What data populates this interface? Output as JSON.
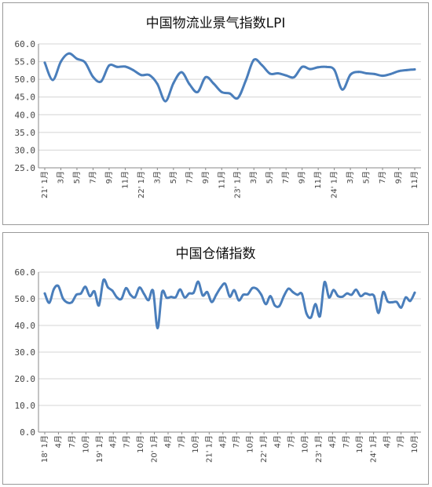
{
  "chart_data": [
    {
      "type": "line",
      "title": "中国物流业景气指数LPI",
      "ylim": [
        25.0,
        60.0
      ],
      "yticks": [
        "60.0",
        "55.0",
        "50.0",
        "45.0",
        "40.0",
        "35.0",
        "30.0",
        "25.0"
      ],
      "grid": true,
      "legend": "none",
      "x_labels": [
        "21' 1月",
        "3月",
        "5月",
        "7月",
        "9月",
        "11月",
        "22' 1月",
        "3月",
        "5月",
        "7月",
        "9月",
        "11月",
        "23' 1月",
        "3月",
        "5月",
        "7月",
        "9月",
        "11月",
        "24' 1月",
        "3月",
        "5月",
        "7月",
        "9月",
        "11月"
      ],
      "x": [
        "2021-01",
        "2021-02",
        "2021-03",
        "2021-04",
        "2021-05",
        "2021-06",
        "2021-07",
        "2021-08",
        "2021-09",
        "2021-10",
        "2021-11",
        "2021-12",
        "2022-01",
        "2022-02",
        "2022-03",
        "2022-04",
        "2022-05",
        "2022-06",
        "2022-07",
        "2022-08",
        "2022-09",
        "2022-10",
        "2022-11",
        "2022-12",
        "2023-01",
        "2023-02",
        "2023-03",
        "2023-04",
        "2023-05",
        "2023-06",
        "2023-07",
        "2023-08",
        "2023-09",
        "2023-10",
        "2023-11",
        "2023-12",
        "2024-01",
        "2024-02",
        "2024-03",
        "2024-04",
        "2024-05",
        "2024-06",
        "2024-07",
        "2024-08",
        "2024-09",
        "2024-10",
        "2024-11"
      ],
      "series": [
        {
          "values": [
            54.7,
            49.8,
            55.0,
            57.3,
            55.8,
            54.8,
            50.7,
            49.4,
            53.9,
            53.5,
            53.6,
            52.6,
            51.2,
            51.2,
            48.7,
            43.8,
            48.9,
            52.0,
            48.6,
            46.4,
            50.6,
            48.8,
            46.4,
            46.0,
            44.7,
            49.7,
            55.5,
            54.0,
            51.6,
            51.7,
            51.1,
            50.6,
            53.5,
            52.9,
            53.4,
            53.5,
            52.7,
            47.1,
            51.3,
            52.1,
            51.7,
            51.5,
            51.0,
            51.5,
            52.3,
            52.6,
            52.8
          ]
        }
      ]
    },
    {
      "type": "line",
      "title": "中国仓储指数",
      "ylim": [
        0.0,
        60.0
      ],
      "yticks": [
        "60.0",
        "50.0",
        "40.0",
        "30.0",
        "20.0",
        "10.0",
        "0.0"
      ],
      "grid": true,
      "legend": "none",
      "x_labels": [
        "18' 1月",
        "4月",
        "7月",
        "10月",
        "19' 1月",
        "4月",
        "7月",
        "10月",
        "20' 1月",
        "4月",
        "7月",
        "10月",
        "21' 1月",
        "4月",
        "7月",
        "10月",
        "22' 1月",
        "4月",
        "7月",
        "10月",
        "23' 1月",
        "4月",
        "7月",
        "10月",
        "24' 1月",
        "4月",
        "7月",
        "10月"
      ],
      "x": [
        "2018-01",
        "2018-02",
        "2018-03",
        "2018-04",
        "2018-05",
        "2018-06",
        "2018-07",
        "2018-08",
        "2018-09",
        "2018-10",
        "2018-11",
        "2018-12",
        "2019-01",
        "2019-02",
        "2019-03",
        "2019-04",
        "2019-05",
        "2019-06",
        "2019-07",
        "2019-08",
        "2019-09",
        "2019-10",
        "2019-11",
        "2019-12",
        "2020-01",
        "2020-02",
        "2020-03",
        "2020-04",
        "2020-05",
        "2020-06",
        "2020-07",
        "2020-08",
        "2020-09",
        "2020-10",
        "2020-11",
        "2020-12",
        "2021-01",
        "2021-02",
        "2021-03",
        "2021-04",
        "2021-05",
        "2021-06",
        "2021-07",
        "2021-08",
        "2021-09",
        "2021-10",
        "2021-11",
        "2021-12",
        "2022-01",
        "2022-02",
        "2022-03",
        "2022-04",
        "2022-05",
        "2022-06",
        "2022-07",
        "2022-08",
        "2022-09",
        "2022-10",
        "2022-11",
        "2022-12",
        "2023-01",
        "2023-02",
        "2023-03",
        "2023-04",
        "2023-05",
        "2023-06",
        "2023-07",
        "2023-08",
        "2023-09",
        "2023-10",
        "2023-11",
        "2023-12",
        "2024-01",
        "2024-02",
        "2024-03",
        "2024-04",
        "2024-05",
        "2024-06",
        "2024-07",
        "2024-08",
        "2024-09",
        "2024-10",
        "2024-11"
      ],
      "series": [
        {
          "values": [
            52.0,
            48.5,
            53.6,
            54.8,
            50.2,
            48.6,
            48.7,
            51.5,
            52.0,
            54.5,
            51.0,
            52.8,
            47.5,
            57.0,
            54.3,
            53.0,
            50.5,
            50.0,
            54.0,
            51.5,
            50.6,
            54.2,
            51.8,
            49.5,
            53.0,
            39.0,
            52.5,
            50.4,
            50.7,
            50.6,
            53.5,
            50.5,
            52.0,
            52.3,
            56.4,
            51.3,
            52.5,
            48.8,
            51.5,
            54.2,
            55.6,
            50.8,
            53.2,
            49.4,
            51.5,
            51.7,
            54.0,
            53.7,
            51.5,
            48.0,
            51.0,
            47.5,
            47.3,
            51.0,
            53.8,
            52.5,
            51.5,
            51.8,
            44.6,
            43.0,
            48.0,
            43.5,
            56.2,
            50.5,
            53.3,
            51.0,
            50.8,
            52.0,
            51.5,
            53.4,
            51.0,
            52.0,
            51.5,
            51.0,
            44.7,
            52.5,
            49.0,
            48.7,
            48.8,
            46.7,
            50.5,
            49.2,
            52.3
          ]
        }
      ]
    }
  ]
}
